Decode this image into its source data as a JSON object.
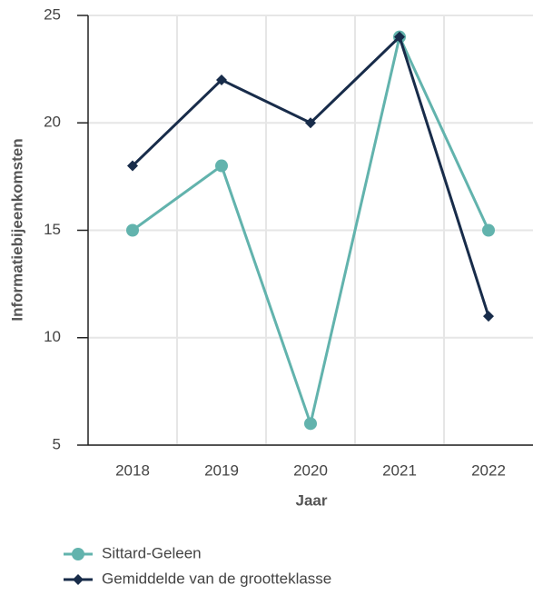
{
  "chart_data": {
    "type": "line",
    "x_label": "Jaar",
    "y_label": "Informatiebijeenkomsten",
    "categories": [
      "2018",
      "2019",
      "2020",
      "2021",
      "2022"
    ],
    "series": [
      {
        "name": "Sittard-Geleen",
        "color": "#62b3ad",
        "marker": "circle",
        "values": [
          15,
          18,
          6,
          24,
          15
        ]
      },
      {
        "name": "Gemiddelde van de grootteklasse",
        "color": "#182c4a",
        "marker": "diamond",
        "values": [
          18,
          22,
          20,
          24,
          11
        ]
      }
    ],
    "ylim": [
      5,
      25
    ],
    "yticks": [
      5,
      10,
      15,
      20,
      25
    ],
    "grid": true,
    "legend": "bottom"
  }
}
